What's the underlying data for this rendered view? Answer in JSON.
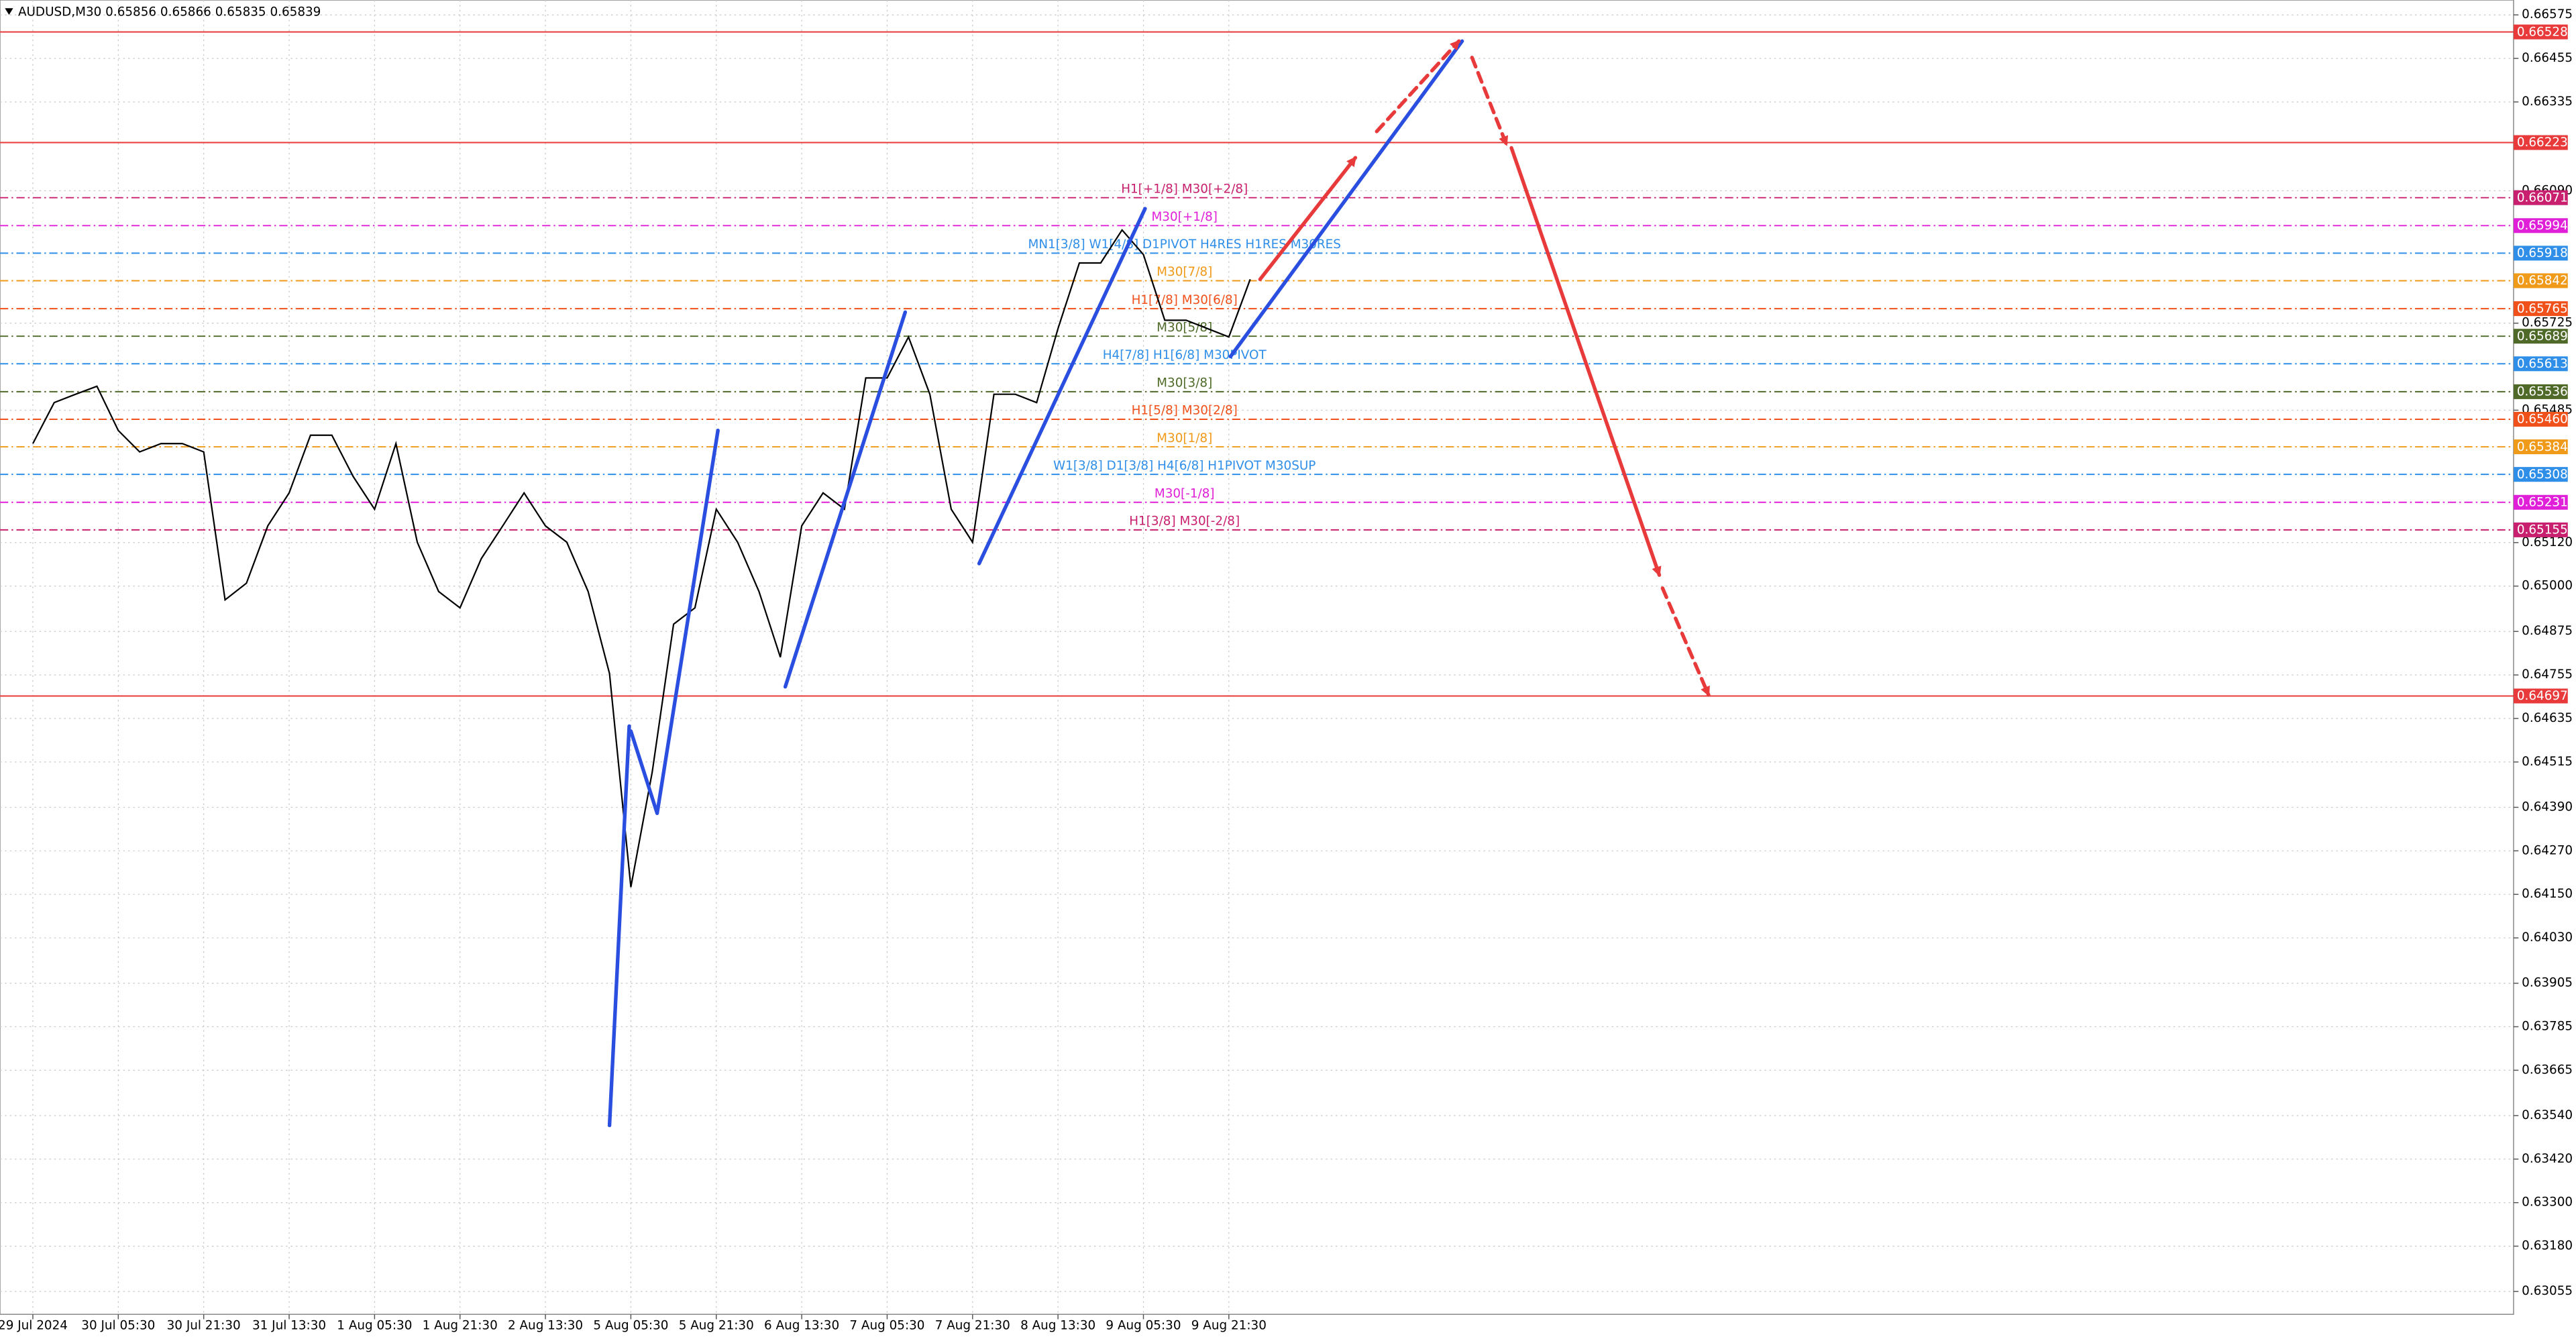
{
  "chart_data": {
    "type": "line",
    "title": "AUDUSD,M30  0.65856 0.65866 0.65835 0.65839",
    "color": "#000000",
    "categories": [
      "29 Jul 2024",
      null,
      null,
      null,
      "30 Jul 05:30",
      null,
      null,
      null,
      "30 Jul 21:30",
      null,
      null,
      null,
      "31 Jul 13:30",
      null,
      null,
      null,
      "1 Aug 05:30",
      null,
      null,
      null,
      "1 Aug 21:30",
      null,
      null,
      null,
      "2 Aug 13:30",
      null,
      null,
      null,
      "5 Aug 05:30",
      null,
      null,
      null,
      "5 Aug 21:30",
      null,
      null,
      null,
      "6 Aug 13:30",
      null,
      null,
      null,
      "7 Aug 05:30",
      null,
      null,
      null,
      "7 Aug 21:30",
      null,
      null,
      null,
      "8 Aug 13:30",
      null,
      null,
      null,
      "9 Aug 05:30",
      null,
      null,
      null,
      "9 Aug 21:30",
      null
    ],
    "values": [
      0.65393,
      0.65506,
      0.65529,
      0.65551,
      0.65429,
      0.6537,
      0.65393,
      0.65393,
      0.6537,
      0.64962,
      0.65008,
      0.65166,
      0.65257,
      0.65416,
      0.65416,
      0.65302,
      0.65212,
      0.65393,
      0.65121,
      0.64985,
      0.6494,
      0.65076,
      0.65166,
      0.65257,
      0.65166,
      0.65121,
      0.64985,
      0.64759,
      0.6417,
      0.64487,
      0.64895,
      0.6494,
      0.65212,
      0.65121,
      0.64985,
      0.64804,
      0.65166,
      0.65257,
      0.65212,
      0.65574,
      0.65574,
      0.65687,
      0.65529,
      0.65212,
      0.65121,
      0.65529,
      0.65529,
      0.65506,
      0.6571,
      0.65891,
      0.65891,
      0.65982,
      0.65914,
      0.65733,
      0.65733,
      0.6571,
      0.65687,
      0.65846
    ],
    "ylim": [
      0.62992,
      0.66616
    ],
    "yticks": [
      0.66575,
      0.66455,
      0.66335,
      {
        "value": 0.6609,
        "label": "0.66090"
      },
      0.65725,
      0.65485,
      {
        "value": 0.6512,
        "label": "0.65120"
      },
      {
        "value": 0.65,
        "label": "0.65000"
      },
      0.64875,
      0.64755,
      0.64635,
      0.64515,
      {
        "value": 0.6439,
        "label": "0.64390"
      },
      {
        "value": 0.6427,
        "label": "0.64270"
      },
      {
        "value": 0.6415,
        "label": "0.64150"
      },
      {
        "value": 0.6403,
        "label": "0.64030"
      },
      0.63905,
      0.63785,
      0.63665,
      {
        "value": 0.6354,
        "label": "0.63540"
      },
      {
        "value": 0.6342,
        "label": "0.63420"
      },
      {
        "value": 0.633,
        "label": "0.63300"
      },
      {
        "value": 0.6318,
        "label": "0.63180"
      },
      0.63055
    ],
    "grid": true,
    "levels": [
      {
        "price": 0.66528,
        "tag": "0.66528",
        "color": "#e83a3a"
      },
      {
        "price": 0.66223,
        "tag": "0.66223",
        "color": "#e83a3a"
      },
      {
        "price": 0.66071,
        "tag": "0.66071",
        "color": "#c8206e",
        "label": "H1[+1/8] M30[+2/8]"
      },
      {
        "price": 0.65994,
        "tag": "0.65994",
        "color": "#e020d8",
        "label": "M30[+1/8]"
      },
      {
        "price": 0.65918,
        "tag": "0.65918",
        "color": "#2f8fe8",
        "label": "MN1[3/8] W1[4/8] D1PIVOT H4RES H1RES M30RES"
      },
      {
        "price": 0.65842,
        "tag": "0.65842",
        "color": "#f09a1a",
        "label": "M30[7/8]"
      },
      {
        "price": 0.65765,
        "tag": "0.65765",
        "color": "#f0501a",
        "label": "H1[7/8] M30[6/8]"
      },
      {
        "price": 0.65689,
        "tag": "0.65689",
        "color": "#4f6a28",
        "label": "M30[5/8]"
      },
      {
        "price": 0.65613,
        "tag": "0.65613",
        "color": "#2f8fe8",
        "label": "H4[7/8] H1[6/8] M30PIVOT"
      },
      {
        "price": 0.65536,
        "tag": "0.65536",
        "color": "#4f6a28",
        "label": "M30[3/8]"
      },
      {
        "price": 0.6546,
        "tag": "0.65460",
        "color": "#f0501a",
        "label": "H1[5/8] M30[2/8]"
      },
      {
        "price": 0.65384,
        "tag": "0.65384",
        "color": "#f09a1a",
        "label": "M30[1/8]"
      },
      {
        "price": 0.65308,
        "tag": "0.65308",
        "color": "#2f8fe8",
        "label": "W1[3/8] D1[3/8] H4[6/8] H1PIVOT M30SUP"
      },
      {
        "price": 0.65231,
        "tag": "0.65231",
        "color": "#e020d8",
        "label": "M30[-1/8]"
      },
      {
        "price": 0.65155,
        "tag": "0.65155",
        "color": "#c8206e",
        "label": "H1[3/8] M30[-2/8]"
      },
      {
        "price": 0.64697,
        "tag": "0.64697",
        "color": "#e83a3a"
      }
    ]
  }
}
